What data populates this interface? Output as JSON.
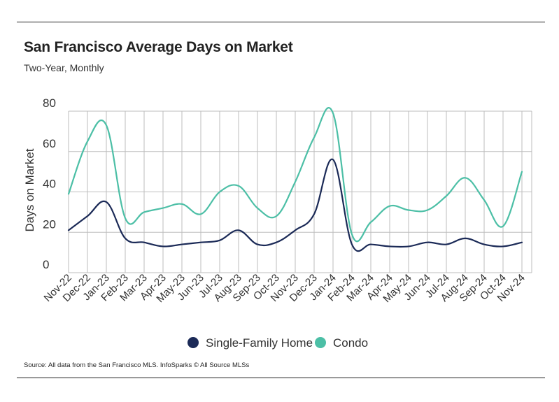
{
  "header": {
    "title": "San Francisco Average Days on Market",
    "subtitle": "Two-Year, Monthly"
  },
  "footer": {
    "source": "Source:  All data from the San Francisco MLS. InfoSparks © All Source MLSs"
  },
  "chart_data": {
    "type": "line",
    "title": "San Francisco Average Days on Market",
    "subtitle": "Two-Year, Monthly",
    "xlabel": "",
    "ylabel": "Days on Market",
    "ylim": [
      0,
      80
    ],
    "yticks": [
      0,
      20,
      40,
      60,
      80
    ],
    "grid": true,
    "legend_position": "bottom-center",
    "categories": [
      "Nov-22",
      "Dec-22",
      "Jan-23",
      "Feb-23",
      "Mar-23",
      "Apr-23",
      "May-23",
      "Jun-23",
      "Jul-23",
      "Aug-23",
      "Sep-23",
      "Oct-23",
      "Nov-23",
      "Dec-23",
      "Jan-24",
      "Feb-24",
      "Mar-24",
      "Apr-24",
      "May-24",
      "Jun-24",
      "Jul-24",
      "Aug-24",
      "Sep-24",
      "Oct-24",
      "Nov-24"
    ],
    "series": [
      {
        "name": "Single-Family Home",
        "color": "#1b2a57",
        "values": [
          21,
          28,
          35,
          17,
          15,
          13,
          14,
          15,
          16,
          21,
          14,
          15,
          21,
          29,
          56,
          14,
          14,
          13,
          13,
          15,
          14,
          17,
          14,
          13,
          15
        ]
      },
      {
        "name": "Condo",
        "color": "#4cbfa6",
        "values": [
          39,
          65,
          73,
          27,
          30,
          32,
          34,
          29,
          40,
          43,
          32,
          28,
          45,
          67,
          79,
          19,
          25,
          33,
          31,
          31,
          38,
          47,
          36,
          23,
          50
        ]
      }
    ]
  }
}
